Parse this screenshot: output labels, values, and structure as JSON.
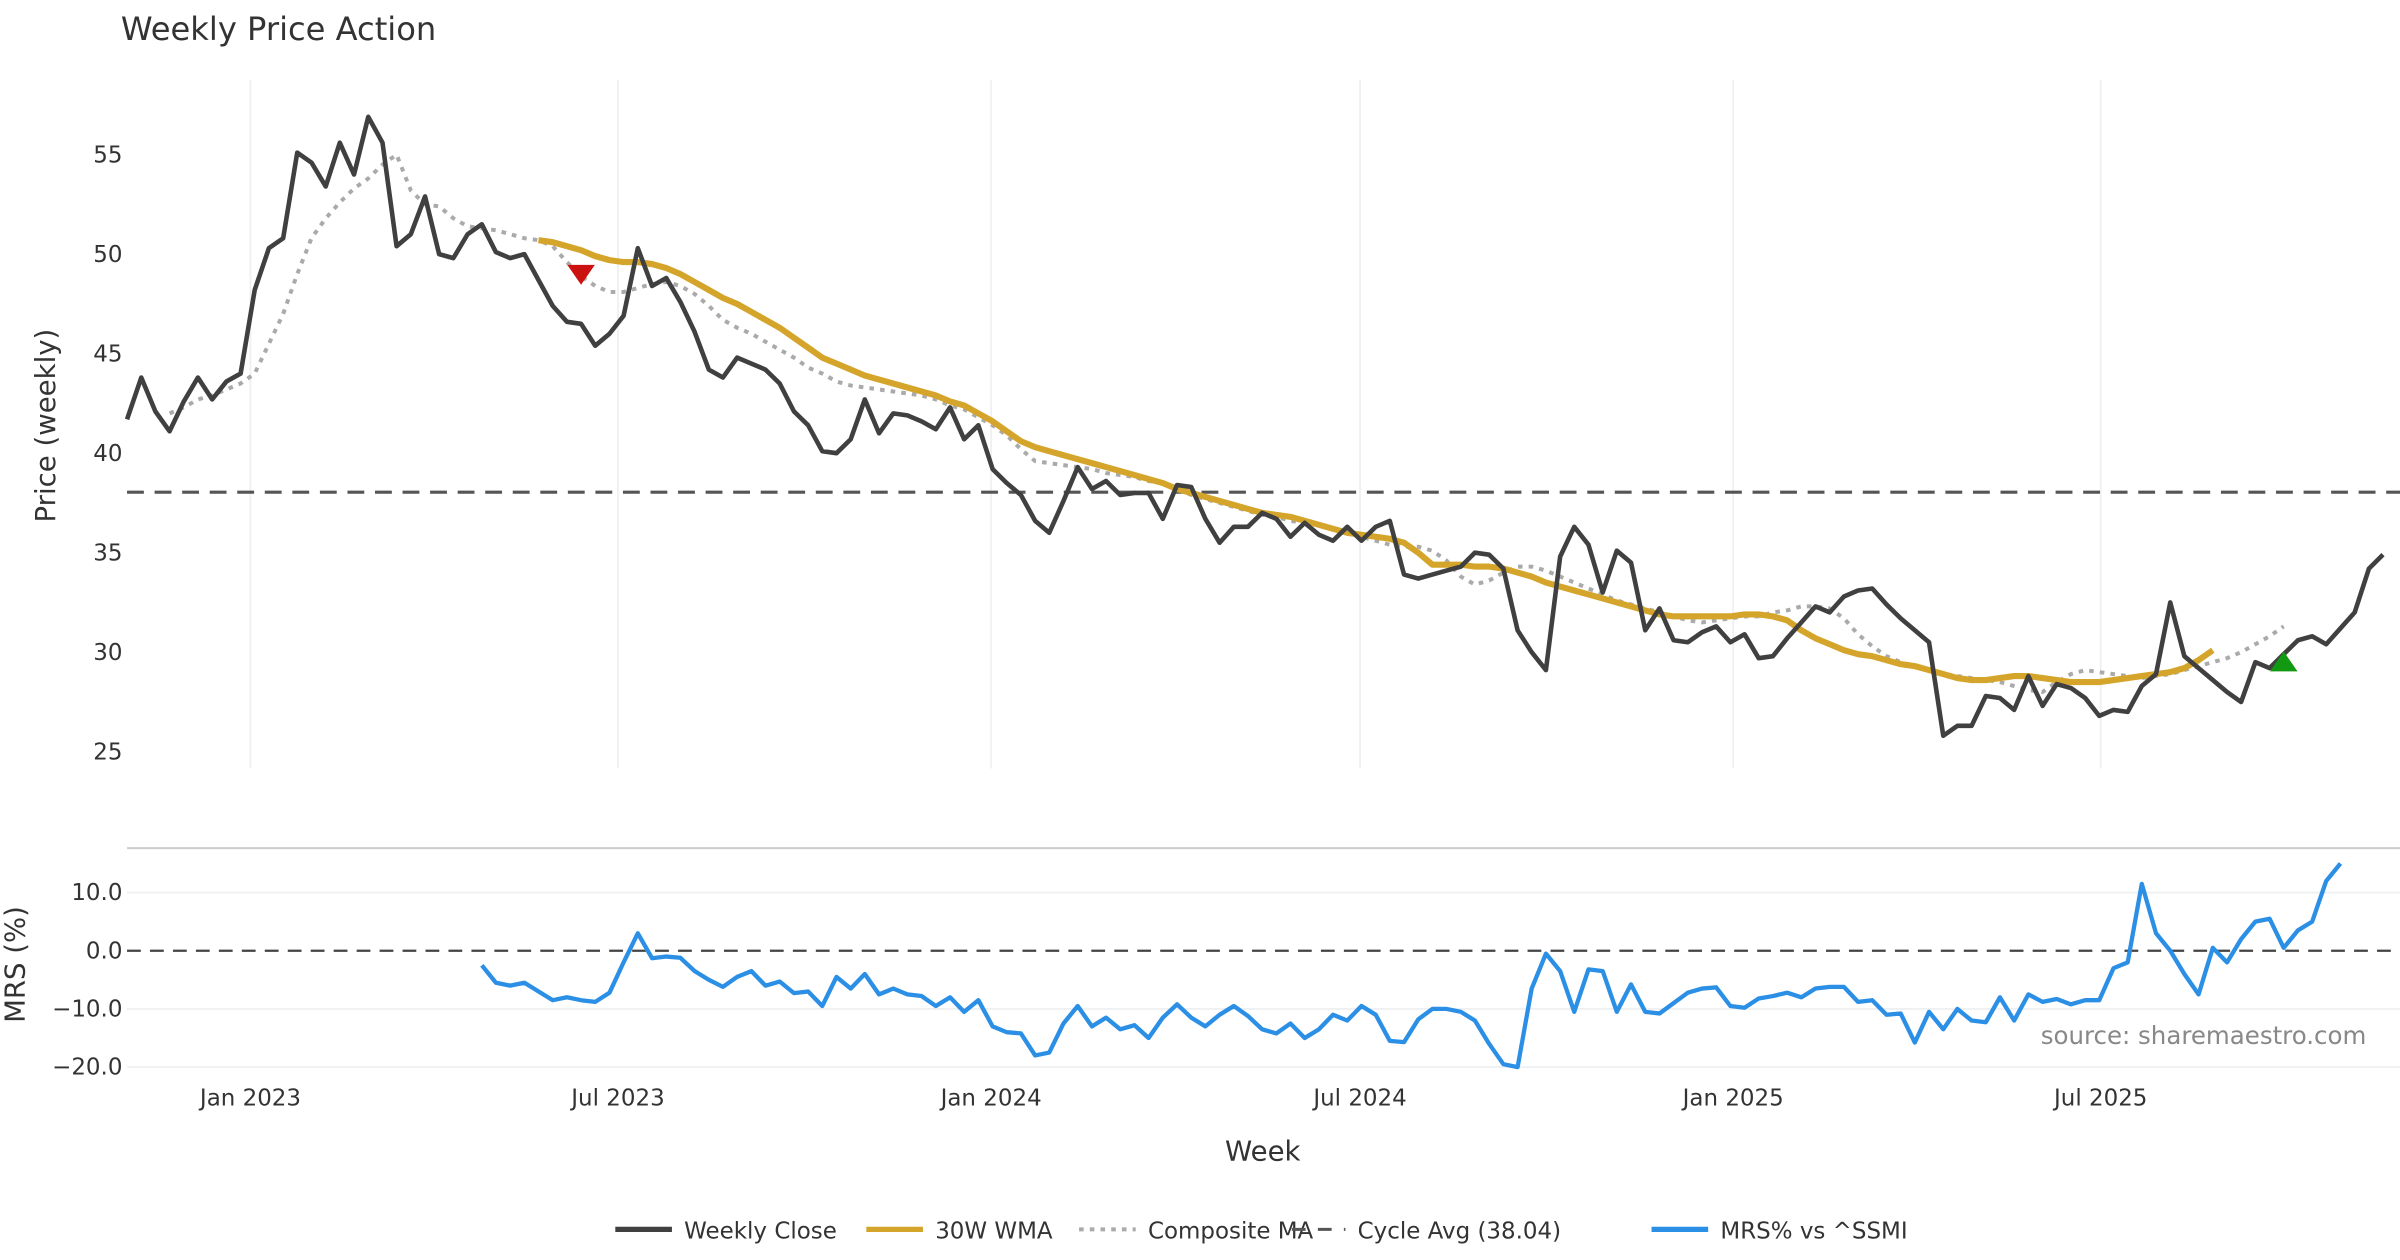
{
  "chart_data": [
    {
      "type": "line",
      "title": "Weekly Price Action",
      "xlabel": "Week",
      "ylabel": "Price (weekly)",
      "ylim": [
        24,
        58.5
      ],
      "yticks": [
        "25",
        "30",
        "35",
        "40",
        "45",
        "50",
        "55"
      ],
      "ytick_values": [
        25,
        30,
        35,
        40,
        45,
        50,
        55
      ],
      "xticks": [
        "Jan 2023",
        "Jul 2023",
        "Jan 2024",
        "Jul 2024",
        "Jan 2025",
        "Jul 2025"
      ],
      "xtick_weeks": [
        8.7,
        34.6,
        60.9,
        86.9,
        113.2,
        139.1
      ],
      "x_start": "Nov 2022",
      "x_unit": "weeks",
      "grid": "vertical",
      "series": [
        {
          "name": "Weekly Close",
          "color": "#404040",
          "start_week": 0,
          "values": [
            41.7,
            43.8,
            42.1,
            41.1,
            42.6,
            43.8,
            42.7,
            43.6,
            44.0,
            48.2,
            50.3,
            50.8,
            55.1,
            54.6,
            53.4,
            55.6,
            54.0,
            56.9,
            55.6,
            50.4,
            51.0,
            52.9,
            50.0,
            49.8,
            51.0,
            51.5,
            50.1,
            49.8,
            50.0,
            48.7,
            47.4,
            46.6,
            46.5,
            45.4,
            46.0,
            46.9,
            50.3,
            48.4,
            48.8,
            47.6,
            46.1,
            44.2,
            43.8,
            44.8,
            44.5,
            44.2,
            43.5,
            42.1,
            41.4,
            40.1,
            40.0,
            40.7,
            42.7,
            41.0,
            42.0,
            41.9,
            41.6,
            41.2,
            42.3,
            40.7,
            41.4,
            39.2,
            38.5,
            37.9,
            36.6,
            36.0,
            37.6,
            39.3,
            38.2,
            38.6,
            37.9,
            38.0,
            38.0,
            36.7,
            38.4,
            38.3,
            36.7,
            35.5,
            36.3,
            36.3,
            37.0,
            36.7,
            35.8,
            36.5,
            35.9,
            35.6,
            36.3,
            35.6,
            36.3,
            36.6,
            33.9,
            33.7,
            33.9,
            34.1,
            34.3,
            35.0,
            34.9,
            34.2,
            31.1,
            30.0,
            29.1,
            34.8,
            36.3,
            35.4,
            33.0,
            35.1,
            34.5,
            31.1,
            32.2,
            30.6,
            30.5,
            31.0,
            31.3,
            30.5,
            30.9,
            29.7,
            29.8,
            30.7,
            31.5,
            32.3,
            32.0,
            32.8,
            33.1,
            33.2,
            32.4,
            31.7,
            31.1,
            30.5,
            25.8,
            26.3,
            26.3,
            27.8,
            27.7,
            27.1,
            28.8,
            27.3,
            28.4,
            28.2,
            27.7,
            26.8,
            27.1,
            27.0,
            28.3,
            28.9,
            32.5,
            29.8,
            29.2,
            28.6,
            28.0,
            27.5,
            29.5,
            29.2,
            29.9,
            30.6,
            30.8,
            30.4,
            31.2,
            32.0,
            34.2,
            34.9
          ]
        },
        {
          "name": "30W WMA",
          "color": "#D4A52A",
          "start_week": 29,
          "values": [
            50.7,
            50.6,
            50.4,
            50.2,
            49.9,
            49.7,
            49.6,
            49.6,
            49.5,
            49.3,
            49.0,
            48.6,
            48.2,
            47.8,
            47.5,
            47.1,
            46.7,
            46.3,
            45.8,
            45.3,
            44.8,
            44.5,
            44.2,
            43.9,
            43.7,
            43.5,
            43.3,
            43.1,
            42.9,
            42.6,
            42.4,
            42.0,
            41.6,
            41.1,
            40.6,
            40.3,
            40.1,
            39.9,
            39.7,
            39.5,
            39.3,
            39.1,
            38.9,
            38.7,
            38.5,
            38.2,
            38.0,
            37.8,
            37.6,
            37.4,
            37.2,
            37.0,
            36.9,
            36.8,
            36.6,
            36.4,
            36.2,
            36.0,
            35.9,
            35.8,
            35.7,
            35.5,
            35.0,
            34.4,
            34.4,
            34.4,
            34.3,
            34.3,
            34.2,
            34.0,
            33.8,
            33.5,
            33.3,
            33.1,
            32.9,
            32.7,
            32.5,
            32.3,
            32.1,
            31.9,
            31.8,
            31.8,
            31.8,
            31.8,
            31.8,
            31.9,
            31.9,
            31.8,
            31.6,
            31.1,
            30.7,
            30.4,
            30.1,
            29.9,
            29.8,
            29.6,
            29.4,
            29.3,
            29.1,
            28.9,
            28.7,
            28.6,
            28.6,
            28.7,
            28.8,
            28.8,
            28.7,
            28.6,
            28.5,
            28.5,
            28.5,
            28.6,
            28.7,
            28.8,
            28.9,
            29.0,
            29.2,
            29.6,
            30.1
          ]
        },
        {
          "name": "Composite MA",
          "color": "#AAAAAA",
          "start_week": 3,
          "values": [
            42.0,
            42.3,
            42.7,
            42.9,
            43.2,
            43.5,
            44.0,
            45.5,
            47.0,
            49.0,
            50.8,
            51.8,
            52.6,
            53.3,
            53.8,
            54.5,
            55.0,
            53.2,
            52.5,
            52.4,
            51.8,
            51.4,
            51.3,
            51.2,
            51.0,
            50.8,
            50.7,
            50.4,
            49.6,
            48.9,
            48.4,
            48.1,
            48.1,
            48.3,
            48.5,
            48.6,
            48.4,
            48.0,
            47.4,
            46.7,
            46.3,
            46.0,
            45.6,
            45.2,
            44.8,
            44.3,
            44.0,
            43.6,
            43.4,
            43.3,
            43.2,
            43.1,
            43.0,
            42.9,
            42.7,
            42.4,
            42.2,
            41.8,
            41.4,
            40.9,
            40.2,
            39.6,
            39.5,
            39.4,
            39.3,
            39.2,
            39.0,
            38.9,
            38.8,
            38.6,
            38.5,
            38.2,
            37.9,
            37.7,
            37.5,
            37.3,
            37.1,
            36.9,
            36.8,
            36.6,
            36.5,
            36.4,
            36.2,
            36.0,
            35.8,
            35.6,
            35.4,
            35.3,
            35.3,
            35.1,
            34.6,
            33.8,
            33.4,
            33.6,
            34.0,
            34.3,
            34.3,
            34.1,
            33.8,
            33.5,
            33.2,
            32.9,
            32.6,
            32.4,
            32.2,
            32.0,
            31.8,
            31.6,
            31.5,
            31.6,
            31.7,
            31.8,
            31.8,
            32.0,
            32.1,
            32.3,
            32.3,
            32.2,
            31.7,
            30.9,
            30.3,
            29.8,
            29.5,
            29.3,
            29.1,
            28.9,
            28.8,
            28.7,
            28.6,
            28.5,
            28.3,
            28.1,
            28.0,
            28.5,
            28.9,
            29.1,
            29.0,
            28.9,
            28.8,
            28.7,
            28.8,
            28.9,
            29.1,
            29.3,
            29.5,
            29.7,
            30.0,
            30.4,
            30.8,
            31.3
          ]
        },
        {
          "name": "Cycle Avg (38.04)",
          "color": "#555555",
          "constant": 38.04
        }
      ],
      "markers": [
        {
          "type": "sell",
          "shape": "triangle-down",
          "color": "#CC1111",
          "week": 32,
          "value": 49.0
        },
        {
          "type": "buy",
          "shape": "triangle-up",
          "color": "#119911",
          "week": 152,
          "value": 29.5
        }
      ]
    },
    {
      "type": "line",
      "ylabel": "MRS (%)",
      "ylim": [
        -21.5,
        17
      ],
      "yticks": [
        "10.0",
        "0.0",
        "−10.0",
        "−20.0"
      ],
      "ytick_values": [
        10,
        0,
        -10,
        -20
      ],
      "reference_line": 0,
      "grid": "horizontal",
      "series": [
        {
          "name": "MRS% vs ^SSMI",
          "color": "#2B8FE5",
          "start_week": 25,
          "values": [
            -2.5,
            -5.5,
            -6.0,
            -5.5,
            -7.0,
            -8.5,
            -8.0,
            -8.5,
            -8.8,
            -7.2,
            -2.0,
            3.0,
            -1.3,
            -1.0,
            -1.2,
            -3.5,
            -5.0,
            -6.2,
            -4.5,
            -3.5,
            -6.0,
            -5.3,
            -7.3,
            -7.0,
            -9.5,
            -4.5,
            -6.5,
            -4.0,
            -7.5,
            -6.5,
            -7.5,
            -7.8,
            -9.5,
            -8.0,
            -10.5,
            -8.5,
            -13.0,
            -14.0,
            -14.2,
            -18.0,
            -17.5,
            -12.5,
            -9.5,
            -13.0,
            -11.5,
            -13.5,
            -12.8,
            -15.0,
            -11.5,
            -9.2,
            -11.5,
            -13.0,
            -11.0,
            -9.5,
            -11.2,
            -13.5,
            -14.2,
            -12.5,
            -15.0,
            -13.5,
            -11.0,
            -12.0,
            -9.5,
            -11.0,
            -15.5,
            -15.7,
            -11.8,
            -10.0,
            -10.0,
            -10.5,
            -12.0,
            -16.0,
            -19.5,
            -20.0,
            -6.5,
            -0.5,
            -3.5,
            -10.5,
            -3.2,
            -3.5,
            -10.5,
            -5.8,
            -10.5,
            -10.8,
            -9.0,
            -7.2,
            -6.5,
            -6.3,
            -9.5,
            -9.8,
            -8.2,
            -7.8,
            -7.2,
            -8.0,
            -6.5,
            -6.2,
            -6.2,
            -8.8,
            -8.5,
            -11.0,
            -10.8,
            -15.8,
            -10.5,
            -13.5,
            -10.0,
            -12.0,
            -12.3,
            -8.0,
            -12.0,
            -7.5,
            -8.8,
            -8.3,
            -9.2,
            -8.5,
            -8.5,
            -3.0,
            -2.0,
            11.5,
            3.0,
            0.0,
            -4.0,
            -7.5,
            0.5,
            -2.0,
            2.0,
            5.0,
            5.5,
            0.5,
            3.5,
            5.0,
            12.0,
            15.0
          ]
        }
      ]
    }
  ],
  "legend": [
    {
      "label": "Weekly Close",
      "style": "solid",
      "color": "#404040"
    },
    {
      "label": "30W WMA",
      "style": "solid",
      "color": "#D4A52A"
    },
    {
      "label": "Composite MA",
      "style": "dotted",
      "color": "#AAAAAA"
    },
    {
      "label": "Cycle Avg (38.04)",
      "style": "dashed",
      "color": "#555555"
    },
    {
      "label": "MRS% vs ^SSMI",
      "style": "solid",
      "color": "#2B8FE5"
    }
  ],
  "source": "source: sharemaestro.com"
}
